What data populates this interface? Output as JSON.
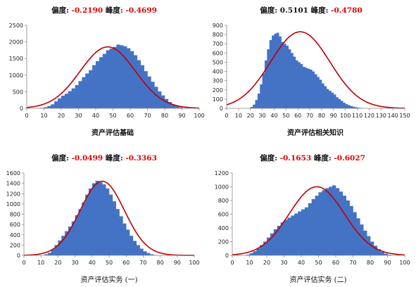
{
  "chart_data": [
    {
      "type": "bar",
      "subtype": "histogram-with-normal-curve",
      "title_prefix_skew": "偏度:",
      "skewness": "-0.2190",
      "title_prefix_kurt": "峰度:",
      "kurtosis": "-0.4699",
      "xlabel": "资产评估基础",
      "xlabel_bold": true,
      "xlim": [
        0,
        100
      ],
      "xticks": [
        0,
        10,
        20,
        30,
        40,
        50,
        60,
        70,
        80,
        90,
        100
      ],
      "ylim": [
        0,
        2500
      ],
      "yticks": [
        0,
        500,
        1000,
        1500,
        2000,
        2500
      ],
      "bin_start": 6,
      "bin_width": 2,
      "values": [
        8,
        15,
        35,
        70,
        120,
        210,
        300,
        380,
        440,
        520,
        600,
        700,
        820,
        940,
        1050,
        1150,
        1300,
        1420,
        1540,
        1640,
        1750,
        1800,
        1850,
        1920,
        1900,
        1870,
        1810,
        1720,
        1600,
        1450,
        1300,
        1120,
        960,
        800,
        650,
        510,
        390,
        280,
        190,
        120,
        70,
        35,
        15,
        6
      ],
      "curve": {
        "mean": 47,
        "sd": 16,
        "peak": 1850
      }
    },
    {
      "type": "bar",
      "subtype": "histogram-with-normal-curve",
      "title_prefix_skew": "偏度:",
      "skewness": "0.5101",
      "title_prefix_kurt": "峰度:",
      "kurtosis": "-0.4780",
      "xlabel": "资产评估相关知识",
      "xlabel_bold": true,
      "xlim": [
        0,
        150
      ],
      "xticks": [
        0,
        10,
        20,
        30,
        40,
        50,
        60,
        70,
        80,
        90,
        100,
        110,
        120,
        130,
        140,
        150
      ],
      "ylim": [
        0,
        900
      ],
      "yticks": [
        0,
        100,
        200,
        300,
        400,
        500,
        600,
        700,
        800,
        900
      ],
      "bin_start": 20,
      "bin_width": 2,
      "values": [
        15,
        40,
        90,
        160,
        260,
        380,
        520,
        640,
        740,
        790,
        810,
        820,
        780,
        720,
        700,
        680,
        640,
        600,
        560,
        520,
        500,
        480,
        450,
        440,
        430,
        420,
        400,
        370,
        340,
        310,
        270,
        240,
        210,
        190,
        170,
        150,
        120,
        100,
        80,
        60,
        45,
        35,
        25,
        18,
        12,
        8,
        5
      ],
      "curve": {
        "mean": 62,
        "sd": 25,
        "peak": 830
      }
    },
    {
      "type": "bar",
      "subtype": "histogram-with-normal-curve",
      "title_prefix_skew": "偏度:",
      "skewness": "-0.0499",
      "title_prefix_kurt": "峰度:",
      "kurtosis": "-0.3363",
      "xlabel": "资产评估实务 (一)",
      "xlabel_bold": false,
      "xlim": [
        0,
        100
      ],
      "xticks": [
        0,
        10,
        20,
        30,
        40,
        50,
        60,
        70,
        80,
        90,
        100
      ],
      "ylim": [
        0,
        1600
      ],
      "yticks": [
        0,
        200,
        400,
        600,
        800,
        1000,
        1200,
        1400,
        1600
      ],
      "bin_start": 12,
      "bin_width": 2,
      "values": [
        20,
        50,
        120,
        200,
        290,
        380,
        470,
        560,
        660,
        780,
        900,
        1030,
        1180,
        1300,
        1400,
        1450,
        1420,
        1380,
        1300,
        1180,
        1050,
        900,
        760,
        620,
        500,
        380,
        280,
        200,
        130,
        80,
        45,
        20,
        8
      ],
      "curve": {
        "mean": 46,
        "sd": 13,
        "peak": 1440
      }
    },
    {
      "type": "bar",
      "subtype": "histogram-with-normal-curve",
      "title_prefix_skew": "偏度:",
      "skewness": "-0.1653",
      "title_prefix_kurt": "峰度:",
      "kurtosis": "-0.6027",
      "xlabel": "资产评估实务 (二)",
      "xlabel_bold": false,
      "xlim": [
        0,
        100
      ],
      "xticks": [
        0,
        10,
        20,
        30,
        40,
        50,
        60,
        70,
        80,
        90,
        100
      ],
      "ylim": [
        0,
        1200
      ],
      "yticks": [
        0,
        200,
        400,
        600,
        800,
        1000,
        1200
      ],
      "bin_start": 8,
      "bin_width": 2,
      "values": [
        10,
        30,
        60,
        100,
        150,
        200,
        260,
        320,
        380,
        430,
        480,
        520,
        550,
        580,
        610,
        640,
        670,
        700,
        760,
        820,
        870,
        920,
        950,
        980,
        1000,
        1020,
        980,
        930,
        870,
        800,
        720,
        630,
        540,
        450,
        360,
        280,
        200,
        140,
        90,
        50,
        25,
        10
      ],
      "curve": {
        "mean": 49,
        "sd": 16,
        "peak": 1000
      }
    }
  ],
  "colors": {
    "bar": "#4472C4",
    "curve": "#C00000",
    "negative_value": "#E00000",
    "axis": "#888888"
  }
}
